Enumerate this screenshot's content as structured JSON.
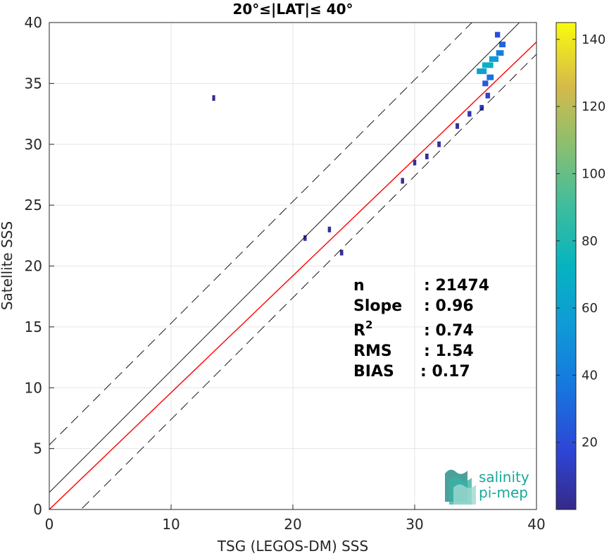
{
  "chart_data": {
    "type": "scatter",
    "subtype": "density-heatmap",
    "title": "20°≤|LAT|≤ 40°",
    "xlabel": "TSG (LEGOS-DM) SSS",
    "ylabel": "Satellite SSS",
    "xlim": [
      0,
      40
    ],
    "ylim": [
      0,
      40
    ],
    "xticks": [
      "0",
      "10",
      "20",
      "30",
      "40"
    ],
    "yticks": [
      "0",
      "5",
      "10",
      "15",
      "20",
      "25",
      "30",
      "35",
      "40"
    ],
    "grid": true,
    "colorbar": {
      "range": [
        0,
        145
      ],
      "ticks": [
        "20",
        "40",
        "60",
        "80",
        "100",
        "120",
        "140"
      ],
      "colormap": "parula"
    },
    "lines": [
      {
        "kind": "identity",
        "color": "#000000",
        "intercept": 1.4,
        "slope": 1
      },
      {
        "kind": "fit",
        "color": "#ff0000",
        "intercept": 0.0,
        "slope": 0.96
      },
      {
        "kind": "upper-bound",
        "color": "#000000",
        "dash": true,
        "intercept": 5.3,
        "slope": 1
      },
      {
        "kind": "lower-bound",
        "color": "#000000",
        "dash": true,
        "intercept": -2.6,
        "slope": 1
      }
    ],
    "density_points": [
      {
        "x": 35.5,
        "y": 36.0,
        "count": 60
      },
      {
        "x": 36.0,
        "y": 36.5,
        "count": 70
      },
      {
        "x": 36.5,
        "y": 37.0,
        "count": 55
      },
      {
        "x": 37.0,
        "y": 37.5,
        "count": 40
      },
      {
        "x": 36.2,
        "y": 35.5,
        "count": 35
      },
      {
        "x": 35.8,
        "y": 35.0,
        "count": 25
      },
      {
        "x": 37.2,
        "y": 38.2,
        "count": 30
      },
      {
        "x": 36.8,
        "y": 39.0,
        "count": 20
      },
      {
        "x": 36.0,
        "y": 34.0,
        "count": 15
      },
      {
        "x": 35.5,
        "y": 33.0,
        "count": 10
      },
      {
        "x": 34.5,
        "y": 32.5,
        "count": 8
      },
      {
        "x": 33.5,
        "y": 31.5,
        "count": 6
      },
      {
        "x": 32.0,
        "y": 30.0,
        "count": 5
      },
      {
        "x": 31.0,
        "y": 29.0,
        "count": 4
      },
      {
        "x": 30.0,
        "y": 28.5,
        "count": 3
      },
      {
        "x": 29.0,
        "y": 27.0,
        "count": 3
      },
      {
        "x": 24.0,
        "y": 21.1,
        "count": 4
      },
      {
        "x": 23.0,
        "y": 23.0,
        "count": 3
      },
      {
        "x": 21.0,
        "y": 22.3,
        "count": 3
      },
      {
        "x": 13.5,
        "y": 33.8,
        "count": 1
      }
    ]
  },
  "stats": {
    "n_label": "n",
    "n_value": ": 21474",
    "slope_label": "Slope",
    "slope_value": ": 0.96",
    "r2_label": "R",
    "r2_sup": "2",
    "r2_value": ": 0.74",
    "rms_label": "RMS",
    "rms_value": ": 1.54",
    "bias_label": "BIAS",
    "bias_value": ": 0.17"
  },
  "logo": {
    "line1": "salinity",
    "line2": "pi-mep",
    "color": "#1aa79a"
  }
}
